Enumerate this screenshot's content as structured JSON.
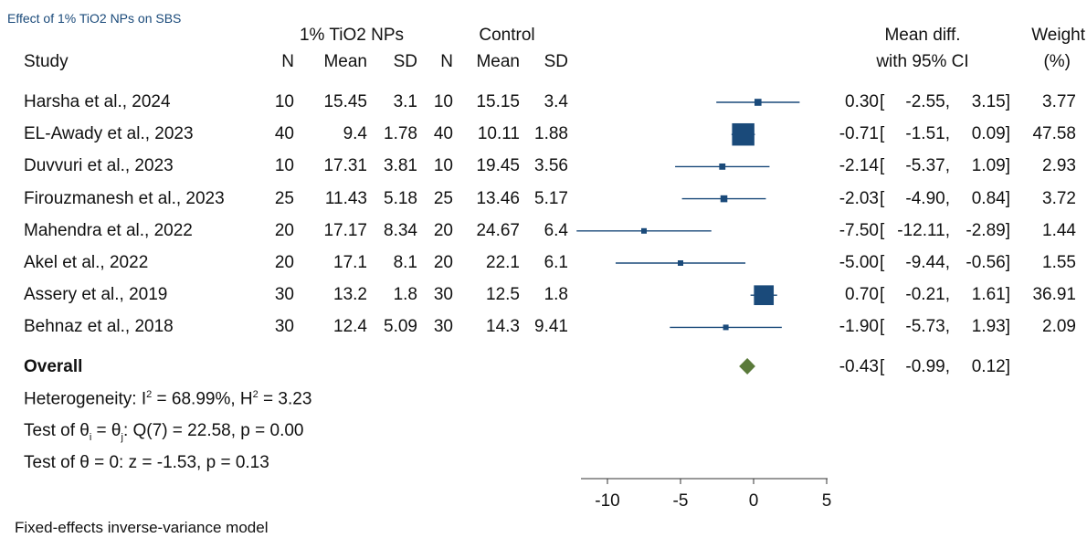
{
  "title": "Effect of 1% TiO2 NPs on SBS",
  "header": {
    "group1": "1% TiO2 NPs",
    "group2": "Control",
    "study": "Study",
    "n": "N",
    "mean": "Mean",
    "sd": "SD",
    "effect_line1": "Mean diff.",
    "effect_line2": "with 95% CI",
    "weight_line1": "Weight",
    "weight_line2": "(%)"
  },
  "overall_label": "Overall",
  "heterogeneity": {
    "prefix": "Heterogeneity: I",
    "i2_sup": "2",
    "mid": " = 68.99%, H",
    "h2_sup": "2",
    "suffix": " = 3.23"
  },
  "test_theta_i": {
    "prefix": "Test of θ",
    "sub_i": "i",
    "mid": " = θ",
    "sub_j": "j",
    "suffix": ": Q(7) = 22.58, p = 0.00"
  },
  "test_theta_zero": "Test of θ = 0: z = -1.53, p = 0.13",
  "footer": "Fixed-effects inverse-variance model",
  "colors": {
    "marker": "#1a4a7a",
    "diamond": "#5a7a3a",
    "text": "#111111"
  },
  "chart_data": {
    "type": "forest",
    "x_ticks": [
      -10,
      -5,
      0,
      5
    ],
    "xlim": [
      -12.5,
      5
    ],
    "studies": [
      {
        "study": "Harsha et al., 2024",
        "n1": "10",
        "mean1": "15.45",
        "sd1": "3.1",
        "n2": "10",
        "mean2": "15.15",
        "sd2": "3.4",
        "md": 0.3,
        "lo": -2.55,
        "hi": 3.15,
        "md_text": "0.30",
        "lo_text": "-2.55,",
        "hi_text": "3.15]",
        "weight": "3.77",
        "w": 3.77
      },
      {
        "study": "EL-Awady et al., 2023",
        "n1": "40",
        "mean1": "9.4",
        "sd1": "1.78",
        "n2": "40",
        "mean2": "10.11",
        "sd2": "1.88",
        "md": -0.71,
        "lo": -1.51,
        "hi": 0.09,
        "md_text": "-0.71",
        "lo_text": "-1.51,",
        "hi_text": "0.09]",
        "weight": "47.58",
        "w": 47.58
      },
      {
        "study": "Duvvuri et al., 2023",
        "n1": "10",
        "mean1": "17.31",
        "sd1": "3.81",
        "n2": "10",
        "mean2": "19.45",
        "sd2": "3.56",
        "md": -2.14,
        "lo": -5.37,
        "hi": 1.09,
        "md_text": "-2.14",
        "lo_text": "-5.37,",
        "hi_text": "1.09]",
        "weight": "2.93",
        "w": 2.93
      },
      {
        "study": "Firouzmanesh et al., 2023",
        "n1": "25",
        "mean1": "11.43",
        "sd1": "5.18",
        "n2": "25",
        "mean2": "13.46",
        "sd2": "5.17",
        "md": -2.03,
        "lo": -4.9,
        "hi": 0.84,
        "md_text": "-2.03",
        "lo_text": "-4.90,",
        "hi_text": "0.84]",
        "weight": "3.72",
        "w": 3.72
      },
      {
        "study": "Mahendra et al., 2022",
        "n1": "20",
        "mean1": "17.17",
        "sd1": "8.34",
        "n2": "20",
        "mean2": "24.67",
        "sd2": "6.4",
        "md": -7.5,
        "lo": -12.11,
        "hi": -2.89,
        "md_text": "-7.50",
        "lo_text": "-12.11,",
        "hi_text": "-2.89]",
        "weight": "1.44",
        "w": 1.44
      },
      {
        "study": "Akel et al., 2022",
        "n1": "20",
        "mean1": "17.1",
        "sd1": "8.1",
        "n2": "20",
        "mean2": "22.1",
        "sd2": "6.1",
        "md": -5.0,
        "lo": -9.44,
        "hi": -0.56,
        "md_text": "-5.00",
        "lo_text": "-9.44,",
        "hi_text": "-0.56]",
        "weight": "1.55",
        "w": 1.55
      },
      {
        "study": "Assery et al., 2019",
        "n1": "30",
        "mean1": "13.2",
        "sd1": "1.8",
        "n2": "30",
        "mean2": "12.5",
        "sd2": "1.8",
        "md": 0.7,
        "lo": -0.21,
        "hi": 1.61,
        "md_text": "0.70",
        "lo_text": "-0.21,",
        "hi_text": "1.61]",
        "weight": "36.91",
        "w": 36.91
      },
      {
        "study": "Behnaz et al., 2018",
        "n1": "30",
        "mean1": "12.4",
        "sd1": "5.09",
        "n2": "30",
        "mean2": "14.3",
        "sd2": "9.41",
        "md": -1.9,
        "lo": -5.73,
        "hi": 1.93,
        "md_text": "-1.90",
        "lo_text": "-5.73,",
        "hi_text": "1.93]",
        "weight": "2.09",
        "w": 2.09
      }
    ],
    "overall": {
      "md": -0.43,
      "lo": -0.99,
      "hi": 0.12,
      "md_text": "-0.43",
      "lo_text": "-0.99,",
      "hi_text": "0.12]"
    }
  }
}
